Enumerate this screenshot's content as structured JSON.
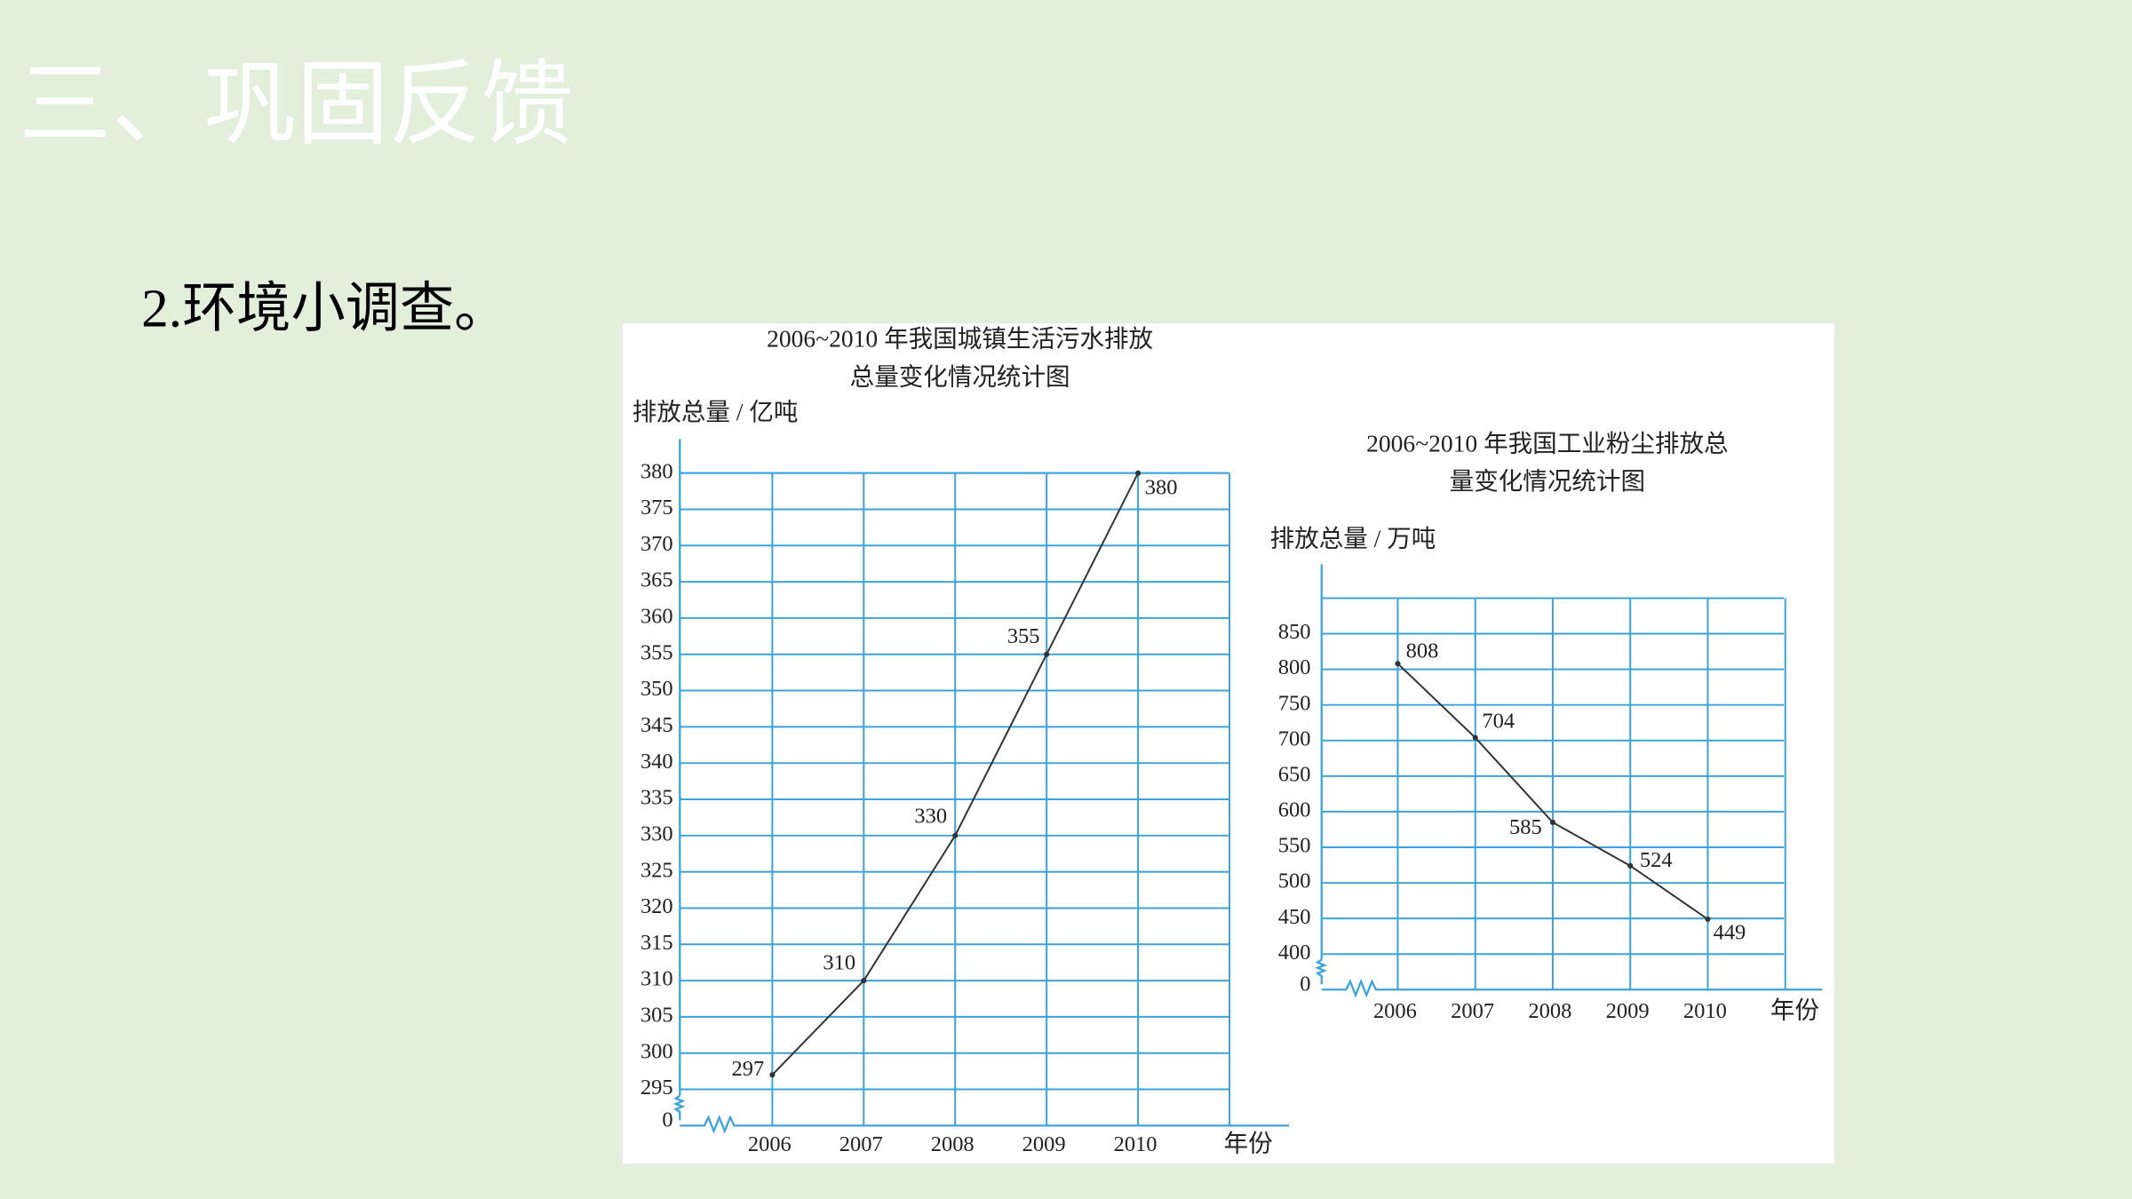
{
  "header": {
    "title": "三、巩固反馈"
  },
  "question": "2.环境小调查。",
  "chart_data": [
    {
      "type": "line",
      "title": [
        "2006~2010 年我国城镇生活污水排放",
        "总量变化情况统计图"
      ],
      "y_label": "排放总量 / 亿吨",
      "x_label": "年份",
      "categories": [
        "2006",
        "2007",
        "2008",
        "2009",
        "2010"
      ],
      "values": [
        297,
        310,
        330,
        355,
        380
      ],
      "color": "#333333",
      "ylim": [
        290,
        380
      ],
      "yticks": [
        0,
        295,
        300,
        305,
        310,
        315,
        320,
        325,
        330,
        335,
        340,
        345,
        350,
        355,
        360,
        365,
        370,
        375,
        380
      ],
      "axis_break": true,
      "grid": true
    },
    {
      "type": "line",
      "title": [
        "2006~2010 年我国工业粉尘排放总",
        "量变化情况统计图"
      ],
      "y_label": "排放总量 / 万吨",
      "x_label": "年份",
      "categories": [
        "2006",
        "2007",
        "2008",
        "2009",
        "2010"
      ],
      "values": [
        808,
        704,
        585,
        524,
        449
      ],
      "color": "#333333",
      "ylim": [
        350,
        900
      ],
      "yticks": [
        0,
        400,
        450,
        500,
        550,
        600,
        650,
        700,
        750,
        800,
        850
      ],
      "axis_break": true,
      "grid": true
    }
  ]
}
